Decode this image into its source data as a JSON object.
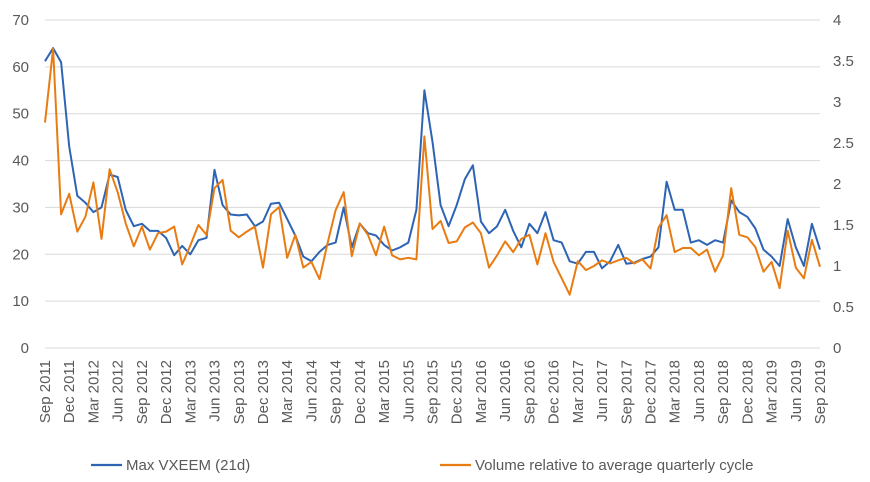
{
  "chart_data": {
    "type": "line",
    "title": "",
    "xlabel": "",
    "ylabel": "",
    "y_left": {
      "min": 0,
      "max": 70,
      "ticks": [
        0,
        10,
        20,
        30,
        40,
        50,
        60,
        70
      ]
    },
    "y_right": {
      "min": 0,
      "max": 4,
      "ticks": [
        "0",
        "0.5",
        "1",
        "1.5",
        "2",
        "2.5",
        "3",
        "3.5",
        "4"
      ]
    },
    "grid": true,
    "legend_position": "bottom",
    "x_labels": [
      "Sep 2011",
      "Dec 2011",
      "Mar 2012",
      "Jun 2012",
      "Sep 2012",
      "Dec 2012",
      "Mar 2013",
      "Jun 2013",
      "Sep 2013",
      "Dec 2013",
      "Mar 2014",
      "Jun 2014",
      "Sep 2014",
      "Dec 2014",
      "Mar 2015",
      "Jun 2015",
      "Sep 2015",
      "Dec 2015",
      "Mar 2016",
      "Jun 2016",
      "Sep 2016",
      "Dec 2016",
      "Mar 2017",
      "Jun 2017",
      "Sep 2017",
      "Dec 2017",
      "Mar 2018",
      "Jun 2018",
      "Sep 2018",
      "Dec 2018",
      "Mar 2019",
      "Jun 2019",
      "Sep 2019"
    ],
    "series": [
      {
        "name": "Max VXEEM (21d)",
        "axis": "left",
        "color": "#2e64b4",
        "values": [
          61.2,
          64.0,
          61.0,
          43.0,
          32.5,
          31.0,
          29.0,
          30.0,
          37.0,
          36.5,
          29.5,
          26.0,
          26.5,
          25.0,
          25.0,
          23.5,
          19.8,
          21.8,
          20.0,
          23.0,
          23.5,
          38.0,
          30.5,
          28.5,
          28.3,
          28.5,
          26.0,
          27.0,
          30.8,
          31.0,
          27.5,
          24.0,
          19.5,
          18.5,
          20.5,
          22.0,
          22.5,
          30.0,
          21.5,
          26.5,
          24.5,
          24.0,
          22.0,
          20.8,
          21.5,
          22.5,
          29.5,
          55.0,
          44.0,
          30.5,
          26.0,
          30.5,
          36.0,
          39.0,
          27.0,
          24.5,
          26.0,
          29.5,
          25.0,
          21.5,
          26.5,
          24.5,
          29.0,
          23.0,
          22.5,
          18.5,
          18.0,
          20.5,
          20.5,
          17.0,
          18.5,
          22.0,
          18.0,
          18.2,
          19.0,
          19.5,
          21.5,
          35.5,
          29.5,
          29.5,
          22.5,
          23.0,
          22.0,
          23.0,
          22.5,
          31.5,
          29.0,
          28.0,
          25.5,
          21.0,
          19.5,
          17.5,
          27.5,
          21.5,
          17.5,
          26.5,
          21.0
        ]
      },
      {
        "name": "Volume relative to average quarterly cycle",
        "axis": "right",
        "color": "#e87c12",
        "values": [
          2.75,
          3.65,
          1.63,
          1.88,
          1.42,
          1.6,
          2.02,
          1.33,
          2.18,
          1.9,
          1.52,
          1.24,
          1.48,
          1.2,
          1.4,
          1.42,
          1.48,
          1.02,
          1.25,
          1.5,
          1.38,
          1.95,
          2.05,
          1.43,
          1.35,
          1.42,
          1.48,
          0.98,
          1.63,
          1.72,
          1.1,
          1.38,
          0.98,
          1.05,
          0.84,
          1.28,
          1.68,
          1.9,
          1.12,
          1.52,
          1.38,
          1.13,
          1.48,
          1.13,
          1.08,
          1.1,
          1.08,
          2.58,
          1.45,
          1.55,
          1.28,
          1.3,
          1.47,
          1.53,
          1.4,
          0.98,
          1.13,
          1.3,
          1.17,
          1.33,
          1.38,
          1.02,
          1.4,
          1.05,
          0.85,
          0.65,
          1.06,
          0.95,
          1.0,
          1.07,
          1.03,
          1.07,
          1.1,
          1.03,
          1.08,
          0.97,
          1.47,
          1.62,
          1.17,
          1.22,
          1.22,
          1.13,
          1.2,
          0.93,
          1.13,
          1.95,
          1.38,
          1.35,
          1.23,
          0.93,
          1.05,
          0.73,
          1.43,
          0.98,
          0.85,
          1.32,
          0.99
        ]
      }
    ]
  }
}
